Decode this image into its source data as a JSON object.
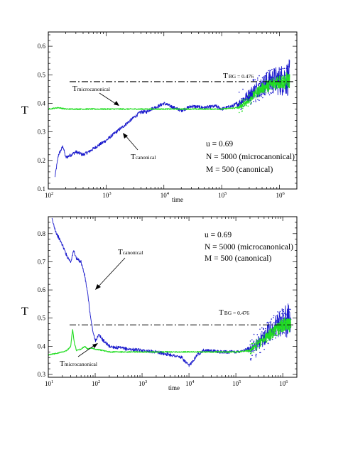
{
  "chart_data": [
    {
      "type": "line",
      "xlabel": "time",
      "ylabel": "T",
      "xscale": "log",
      "xlim": [
        100,
        2000000
      ],
      "ylim": [
        0.1,
        0.65
      ],
      "xticks": [
        {
          "base": "10",
          "exp": "2"
        },
        {
          "base": "10",
          "exp": "3"
        },
        {
          "base": "10",
          "exp": "4"
        },
        {
          "base": "10",
          "exp": "5"
        },
        {
          "base": "10",
          "exp": "6"
        }
      ],
      "yticks": [
        {
          "v": 0.1,
          "label": "0.1"
        },
        {
          "v": 0.2,
          "label": "0.2"
        },
        {
          "v": 0.3,
          "label": "0.3"
        },
        {
          "v": 0.4,
          "label": "0.4"
        },
        {
          "v": 0.5,
          "label": "0.5"
        },
        {
          "v": 0.6,
          "label": "0.6"
        }
      ],
      "reference": {
        "value": 0.476,
        "label_main": "T",
        "label_sub": "BG",
        "label_val": " = 0.476"
      },
      "annotations": {
        "lines": [
          "u = 0.69",
          "N = 5000 (microcanonical)",
          "M = 500   (canonical)"
        ],
        "tcan_main": "T",
        "tcan_sub": "canonical",
        "tmic_main": "T",
        "tmic_sub": "microcanonical"
      },
      "series": [
        {
          "name": "canonical",
          "color": "#1a1acc",
          "points": [
            [
              130,
              0.14
            ],
            [
              150,
              0.22
            ],
            [
              180,
              0.25
            ],
            [
              200,
              0.21
            ],
            [
              250,
              0.22
            ],
            [
              300,
              0.23
            ],
            [
              400,
              0.22
            ],
            [
              500,
              0.23
            ],
            [
              700,
              0.25
            ],
            [
              1000,
              0.27
            ],
            [
              1500,
              0.3
            ],
            [
              2000,
              0.32
            ],
            [
              3000,
              0.35
            ],
            [
              4000,
              0.37
            ],
            [
              5000,
              0.37
            ],
            [
              6000,
              0.38
            ],
            [
              8000,
              0.39
            ],
            [
              10000,
              0.4
            ],
            [
              15000,
              0.385
            ],
            [
              20000,
              0.375
            ],
            [
              30000,
              0.39
            ],
            [
              50000,
              0.385
            ],
            [
              80000,
              0.39
            ],
            [
              100000,
              0.38
            ],
            [
              150000,
              0.39
            ],
            [
              200000,
              0.4
            ],
            [
              300000,
              0.43
            ],
            [
              400000,
              0.45
            ],
            [
              600000,
              0.47
            ],
            [
              800000,
              0.48
            ],
            [
              1000000,
              0.48
            ],
            [
              1500000,
              0.49
            ]
          ]
        },
        {
          "name": "microcanonical",
          "color": "#22dd22",
          "points": [
            [
              100,
              0.38
            ],
            [
              150,
              0.385
            ],
            [
              200,
              0.38
            ],
            [
              500,
              0.38
            ],
            [
              1000,
              0.38
            ],
            [
              3000,
              0.38
            ],
            [
              5000,
              0.38
            ],
            [
              10000,
              0.38
            ],
            [
              30000,
              0.38
            ],
            [
              100000,
              0.38
            ],
            [
              200000,
              0.385
            ],
            [
              300000,
              0.41
            ],
            [
              400000,
              0.44
            ],
            [
              600000,
              0.46
            ],
            [
              1000000,
              0.475
            ],
            [
              1500000,
              0.48
            ]
          ]
        }
      ]
    },
    {
      "type": "line",
      "xlabel": "time",
      "ylabel": "T",
      "xscale": "log",
      "xlim": [
        10,
        2000000
      ],
      "ylim": [
        0.29,
        0.86
      ],
      "xticks": [
        {
          "base": "10",
          "exp": "1"
        },
        {
          "base": "10",
          "exp": "2"
        },
        {
          "base": "10",
          "exp": "3"
        },
        {
          "base": "10",
          "exp": "4"
        },
        {
          "base": "10",
          "exp": "5"
        },
        {
          "base": "10",
          "exp": "6"
        }
      ],
      "yticks": [
        {
          "v": 0.3,
          "label": "0.3"
        },
        {
          "v": 0.4,
          "label": "0.4"
        },
        {
          "v": 0.5,
          "label": "0.5"
        },
        {
          "v": 0.6,
          "label": "0.6"
        },
        {
          "v": 0.7,
          "label": "0.7"
        },
        {
          "v": 0.8,
          "label": "0.8"
        }
      ],
      "reference": {
        "value": 0.476,
        "label_main": "T",
        "label_sub": "BG",
        "label_val": " = 0.476"
      },
      "annotations": {
        "lines": [
          "u = 0.69",
          "N = 5000 (microcanonical)",
          "M = 500   (canonical)"
        ],
        "tcan_main": "T",
        "tcan_sub": "canonical",
        "tmic_main": "T",
        "tmic_sub": "microcanonical"
      },
      "series": [
        {
          "name": "canonical",
          "color": "#1a1acc",
          "points": [
            [
              12,
              0.85
            ],
            [
              15,
              0.8
            ],
            [
              20,
              0.76
            ],
            [
              25,
              0.72
            ],
            [
              30,
              0.7
            ],
            [
              35,
              0.74
            ],
            [
              40,
              0.71
            ],
            [
              50,
              0.7
            ],
            [
              60,
              0.65
            ],
            [
              70,
              0.58
            ],
            [
              80,
              0.5
            ],
            [
              90,
              0.45
            ],
            [
              100,
              0.42
            ],
            [
              120,
              0.44
            ],
            [
              150,
              0.42
            ],
            [
              200,
              0.4
            ],
            [
              300,
              0.395
            ],
            [
              500,
              0.39
            ],
            [
              1000,
              0.385
            ],
            [
              2000,
              0.38
            ],
            [
              4000,
              0.37
            ],
            [
              7000,
              0.36
            ],
            [
              10000,
              0.33
            ],
            [
              15000,
              0.37
            ],
            [
              20000,
              0.385
            ],
            [
              50000,
              0.38
            ],
            [
              100000,
              0.38
            ],
            [
              200000,
              0.39
            ],
            [
              300000,
              0.41
            ],
            [
              500000,
              0.45
            ],
            [
              800000,
              0.48
            ],
            [
              1000000,
              0.49
            ],
            [
              1500000,
              0.49
            ]
          ]
        },
        {
          "name": "microcanonical",
          "color": "#22dd22",
          "points": [
            [
              10,
              0.37
            ],
            [
              15,
              0.375
            ],
            [
              20,
              0.38
            ],
            [
              25,
              0.385
            ],
            [
              30,
              0.4
            ],
            [
              33,
              0.46
            ],
            [
              36,
              0.41
            ],
            [
              40,
              0.385
            ],
            [
              50,
              0.39
            ],
            [
              60,
              0.4
            ],
            [
              70,
              0.39
            ],
            [
              80,
              0.395
            ],
            [
              100,
              0.39
            ],
            [
              150,
              0.385
            ],
            [
              200,
              0.38
            ],
            [
              500,
              0.38
            ],
            [
              1000,
              0.38
            ],
            [
              5000,
              0.38
            ],
            [
              10000,
              0.38
            ],
            [
              50000,
              0.38
            ],
            [
              100000,
              0.38
            ],
            [
              200000,
              0.385
            ],
            [
              300000,
              0.41
            ],
            [
              500000,
              0.44
            ],
            [
              800000,
              0.46
            ],
            [
              1000000,
              0.475
            ],
            [
              1500000,
              0.48
            ]
          ]
        }
      ]
    }
  ]
}
